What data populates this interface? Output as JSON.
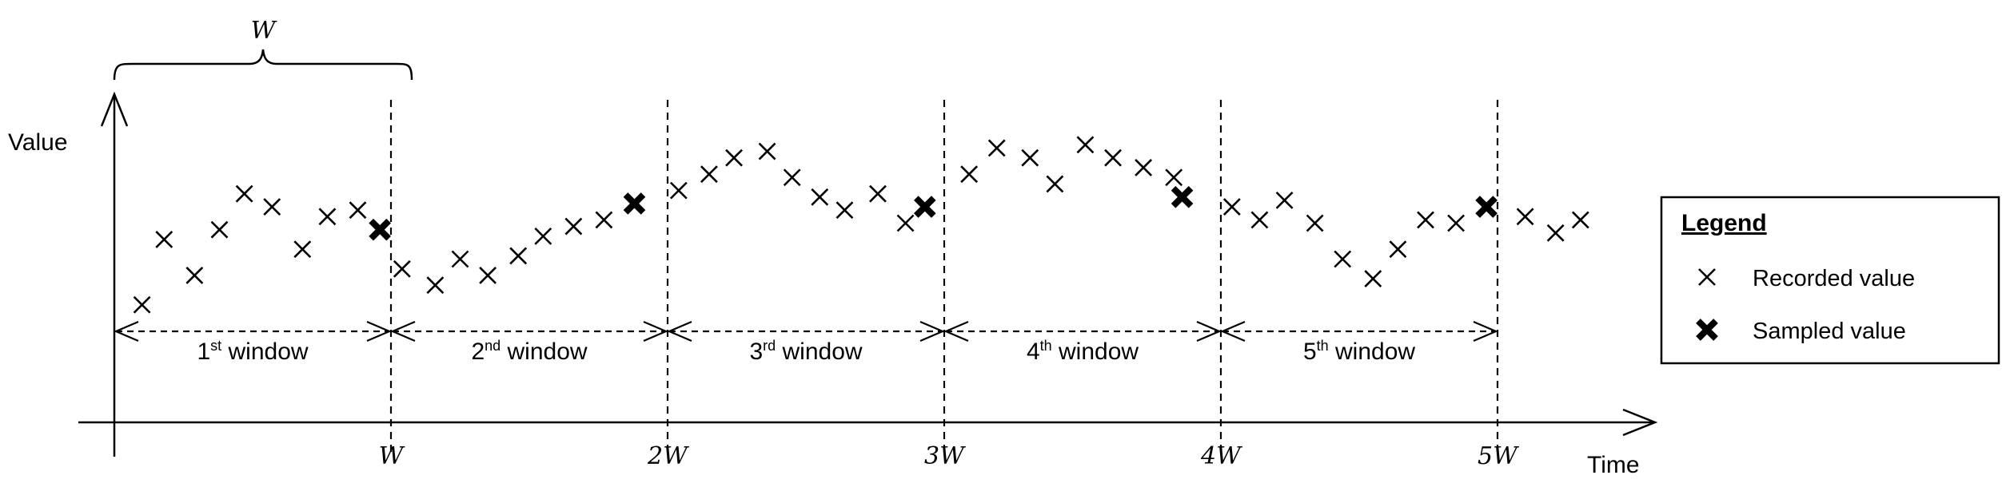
{
  "chart_data": {
    "type": "scatter",
    "ylabel": "Value",
    "xlabel": "Time",
    "window_symbol": "W",
    "x_ticks": [
      "W",
      "2W",
      "3W",
      "4W",
      "5W"
    ],
    "windows": [
      {
        "num": "1",
        "sup": "st",
        "word": "window"
      },
      {
        "num": "2",
        "sup": "nd",
        "word": "window"
      },
      {
        "num": "3",
        "sup": "rd",
        "word": "window"
      },
      {
        "num": "4",
        "sup": "th",
        "word": "window"
      },
      {
        "num": "5",
        "sup": "th",
        "word": "window"
      }
    ],
    "legend": {
      "title": "Legend",
      "recorded_label": "Recorded value",
      "sampled_label": "Sampled value"
    },
    "recorded": [
      [
        0.1,
        0.36
      ],
      [
        0.18,
        0.56
      ],
      [
        0.29,
        0.45
      ],
      [
        0.38,
        0.59
      ],
      [
        0.47,
        0.7
      ],
      [
        0.57,
        0.66
      ],
      [
        0.68,
        0.53
      ],
      [
        0.77,
        0.63
      ],
      [
        0.88,
        0.65
      ],
      [
        1.04,
        0.47
      ],
      [
        1.16,
        0.42
      ],
      [
        1.25,
        0.5
      ],
      [
        1.35,
        0.45
      ],
      [
        1.46,
        0.51
      ],
      [
        1.55,
        0.57
      ],
      [
        1.66,
        0.6
      ],
      [
        1.77,
        0.62
      ],
      [
        2.04,
        0.71
      ],
      [
        2.15,
        0.76
      ],
      [
        2.24,
        0.81
      ],
      [
        2.36,
        0.83
      ],
      [
        2.45,
        0.75
      ],
      [
        2.55,
        0.69
      ],
      [
        2.64,
        0.65
      ],
      [
        2.76,
        0.7
      ],
      [
        2.86,
        0.61
      ],
      [
        3.09,
        0.76
      ],
      [
        3.19,
        0.84
      ],
      [
        3.31,
        0.81
      ],
      [
        3.4,
        0.73
      ],
      [
        3.51,
        0.85
      ],
      [
        3.61,
        0.81
      ],
      [
        3.72,
        0.78
      ],
      [
        3.83,
        0.75
      ],
      [
        4.04,
        0.66
      ],
      [
        4.14,
        0.62
      ],
      [
        4.23,
        0.68
      ],
      [
        4.34,
        0.61
      ],
      [
        4.44,
        0.5
      ],
      [
        4.55,
        0.44
      ],
      [
        4.64,
        0.53
      ],
      [
        4.74,
        0.62
      ],
      [
        4.85,
        0.61
      ],
      [
        5.1,
        0.63
      ],
      [
        5.21,
        0.58
      ],
      [
        5.3,
        0.62
      ]
    ],
    "sampled": [
      [
        0.96,
        0.59
      ],
      [
        1.88,
        0.67
      ],
      [
        2.93,
        0.66
      ],
      [
        3.86,
        0.69
      ],
      [
        4.96,
        0.66
      ]
    ]
  }
}
